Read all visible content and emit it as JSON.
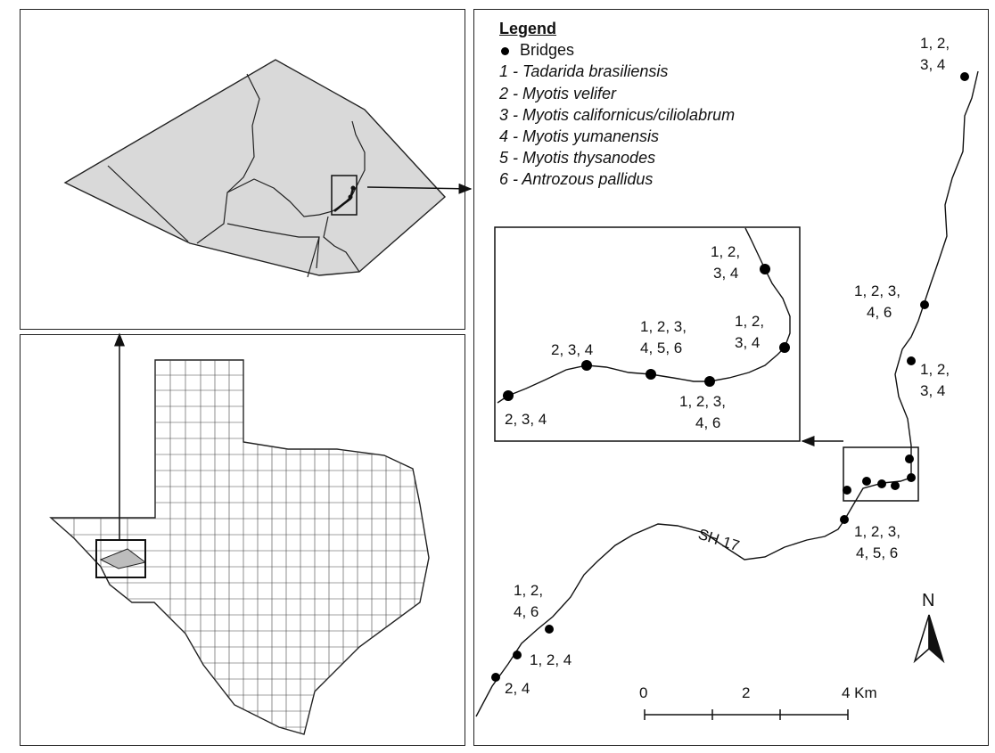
{
  "legend": {
    "title": "Legend",
    "bridges_label": "Bridges",
    "species": [
      "1 - Tadarida brasiliensis",
      "2 - Myotis velifer",
      "3 - Myotis californicus/ciliolabrum",
      "4 - Myotis yumanensis",
      "5 - Myotis thysanodes",
      "6 - Antrozous pallidus"
    ]
  },
  "road_label": "SH 17",
  "north_label": "N",
  "scale": {
    "tick0": "0",
    "tick1": "2",
    "tick2": "4 Km"
  },
  "main_labels": {
    "b1_l1": "1, 2,",
    "b1_l2": "3, 4",
    "b2_l1": "1, 2, 3,",
    "b2_l2": "4, 6",
    "b3_l1": "1, 2,",
    "b3_l2": "3, 4",
    "b4_l1": "1, 2, 3,",
    "b4_l2": "4, 5, 6",
    "b5_l1": "1, 2,",
    "b5_l2": "4, 6",
    "b6": "1, 2, 4",
    "b7": "2, 4"
  },
  "inset_labels": {
    "i1_l1": "1, 2,",
    "i1_l2": "3, 4",
    "i2_l1": "1, 2,",
    "i2_l2": "3, 4",
    "i3_l1": "1, 2, 3,",
    "i3_l2": "4, 5, 6",
    "i4": "2, 3, 4",
    "i5": "2, 3, 4",
    "i6_l1": "1, 2, 3,",
    "i6_l2": "4, 6"
  },
  "colors": {
    "county_fill": "#d9d9d9",
    "line": "#111111",
    "state_fill": "#ffffff"
  }
}
